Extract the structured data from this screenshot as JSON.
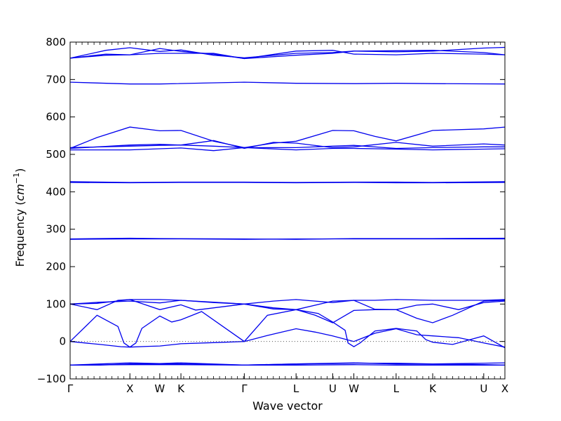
{
  "chart_data": {
    "type": "line",
    "title": "",
    "xlabel": "Wave vector",
    "ylabel": "Frequency (cm⁻¹)",
    "ylabel_parts": {
      "main": "Frequency (",
      "unit": "cm",
      "exp": "−1",
      "close": ")"
    },
    "ylim": [
      -100,
      800
    ],
    "y_ticks": [
      -100,
      0,
      100,
      200,
      300,
      400,
      500,
      600,
      700,
      800
    ],
    "y_tick_labels": [
      "−100",
      "0",
      "100",
      "200",
      "300",
      "400",
      "500",
      "600",
      "700",
      "800"
    ],
    "grid": false,
    "legend": "none",
    "color": "#0000ee",
    "x_path_points": [
      {
        "label": "Γ",
        "x": 0
      },
      {
        "label": "X",
        "x": 1.0
      },
      {
        "label": "W",
        "x": 1.5
      },
      {
        "label": "K",
        "x": 1.854
      },
      {
        "label": "Γ",
        "x": 2.914
      },
      {
        "label": "L",
        "x": 3.78
      },
      {
        "label": "U",
        "x": 4.393
      },
      {
        "label": "W",
        "x": 4.747
      },
      {
        "label": "L",
        "x": 5.454
      },
      {
        "label": "K",
        "x": 6.066
      },
      {
        "label": "U",
        "x": 6.92
      },
      {
        "label": "X",
        "x": 7.274
      }
    ],
    "zero_line": {
      "y": 0,
      "style": "dotted"
    },
    "series": [
      {
        "values": [
          [
            0,
            -63
          ],
          [
            0.5,
            -63
          ],
          [
            1.0,
            -60
          ],
          [
            1.5,
            -60
          ],
          [
            1.854,
            -60
          ],
          [
            2.914,
            -63
          ],
          [
            3.78,
            -60
          ],
          [
            4.393,
            -58
          ],
          [
            4.747,
            -57
          ],
          [
            5.454,
            -60
          ],
          [
            6.066,
            -60
          ],
          [
            6.92,
            -58
          ],
          [
            7.274,
            -57
          ]
        ]
      },
      {
        "values": [
          [
            0,
            -63
          ],
          [
            0.5,
            -60
          ],
          [
            1.0,
            -57
          ],
          [
            1.5,
            -59
          ],
          [
            1.854,
            -57
          ],
          [
            2.914,
            -63
          ],
          [
            3.78,
            -60
          ],
          [
            4.393,
            -59
          ],
          [
            4.747,
            -58
          ],
          [
            5.454,
            -58
          ],
          [
            6.066,
            -60
          ],
          [
            6.92,
            -62
          ],
          [
            7.274,
            -63
          ]
        ]
      },
      {
        "values": [
          [
            0,
            -63
          ],
          [
            1.0,
            -62
          ],
          [
            1.854,
            -62
          ],
          [
            2.914,
            -63
          ],
          [
            3.78,
            -63
          ],
          [
            4.747,
            -62
          ],
          [
            5.454,
            -63
          ],
          [
            6.066,
            -63
          ],
          [
            7.274,
            -63
          ]
        ]
      },
      {
        "values": [
          [
            0,
            0
          ],
          [
            0.5,
            -8
          ],
          [
            0.85,
            -14
          ],
          [
            1.0,
            -15
          ],
          [
            1.3,
            -13
          ],
          [
            1.5,
            -12
          ],
          [
            1.854,
            -6
          ],
          [
            2.4,
            -3
          ],
          [
            2.914,
            0
          ],
          [
            3.3,
            16
          ],
          [
            3.78,
            34
          ],
          [
            4.1,
            25
          ],
          [
            4.393,
            15
          ],
          [
            4.747,
            0
          ],
          [
            5.1,
            22
          ],
          [
            5.454,
            34
          ],
          [
            5.8,
            18
          ],
          [
            6.066,
            15
          ],
          [
            6.5,
            10
          ],
          [
            6.92,
            -4
          ],
          [
            7.274,
            -15
          ]
        ]
      },
      {
        "values": [
          [
            0,
            0
          ],
          [
            0.45,
            70
          ],
          [
            0.8,
            40
          ],
          [
            0.9,
            -4
          ],
          [
            1.0,
            -15
          ],
          [
            1.1,
            -4
          ],
          [
            1.2,
            35
          ],
          [
            1.5,
            68
          ],
          [
            1.7,
            52
          ],
          [
            1.854,
            58
          ],
          [
            2.2,
            80
          ],
          [
            2.914,
            0
          ],
          [
            3.3,
            70
          ],
          [
            3.78,
            85
          ],
          [
            4.15,
            75
          ],
          [
            4.393,
            52
          ],
          [
            4.6,
            30
          ],
          [
            4.65,
            -4
          ],
          [
            4.747,
            -14
          ],
          [
            4.85,
            -4
          ],
          [
            5.1,
            28
          ],
          [
            5.454,
            35
          ],
          [
            5.8,
            28
          ],
          [
            5.95,
            5
          ],
          [
            6.066,
            -2
          ],
          [
            6.4,
            -8
          ],
          [
            6.92,
            15
          ],
          [
            7.2,
            -10
          ],
          [
            7.274,
            -17
          ]
        ]
      },
      {
        "values": [
          [
            0,
            100
          ],
          [
            0.45,
            85
          ],
          [
            0.8,
            110
          ],
          [
            1.0,
            112
          ],
          [
            1.5,
            85
          ],
          [
            1.854,
            98
          ],
          [
            2.1,
            84
          ],
          [
            2.914,
            100
          ],
          [
            3.4,
            87
          ],
          [
            3.78,
            85
          ],
          [
            4.393,
            108
          ],
          [
            4.747,
            110
          ],
          [
            5.1,
            86
          ],
          [
            5.454,
            85
          ],
          [
            5.8,
            97
          ],
          [
            6.066,
            100
          ],
          [
            6.5,
            85
          ],
          [
            6.92,
            104
          ],
          [
            7.274,
            108
          ]
        ]
      },
      {
        "values": [
          [
            0,
            100
          ],
          [
            0.5,
            105
          ],
          [
            1.0,
            108
          ],
          [
            1.5,
            103
          ],
          [
            1.854,
            110
          ],
          [
            2.4,
            104
          ],
          [
            2.914,
            100
          ],
          [
            3.4,
            108
          ],
          [
            3.78,
            112
          ],
          [
            4.393,
            104
          ],
          [
            4.747,
            110
          ],
          [
            5.1,
            110
          ],
          [
            5.454,
            112
          ],
          [
            6.066,
            110
          ],
          [
            6.92,
            110
          ],
          [
            7.274,
            112
          ]
        ]
      },
      {
        "values": [
          [
            0,
            100
          ],
          [
            0.45,
            102
          ],
          [
            1.0,
            112
          ],
          [
            1.5,
            112
          ],
          [
            1.854,
            110
          ],
          [
            2.4,
            105
          ],
          [
            2.914,
            100
          ],
          [
            3.4,
            90
          ],
          [
            3.78,
            85
          ],
          [
            4.1,
            70
          ],
          [
            4.393,
            50
          ],
          [
            4.747,
            83
          ],
          [
            5.1,
            85
          ],
          [
            5.454,
            85
          ],
          [
            5.8,
            62
          ],
          [
            6.066,
            50
          ],
          [
            6.4,
            70
          ],
          [
            6.92,
            108
          ],
          [
            7.274,
            110
          ]
        ]
      },
      {
        "values": [
          [
            0,
            273
          ],
          [
            1.0,
            274
          ],
          [
            1.854,
            274
          ],
          [
            2.914,
            273
          ],
          [
            3.78,
            274
          ],
          [
            4.747,
            274
          ],
          [
            5.454,
            274
          ],
          [
            6.066,
            274
          ],
          [
            7.274,
            274
          ]
        ]
      },
      {
        "values": [
          [
            0,
            274
          ],
          [
            1.0,
            276
          ],
          [
            1.5,
            275
          ],
          [
            2.914,
            274
          ],
          [
            3.78,
            273
          ],
          [
            4.747,
            275
          ],
          [
            6.066,
            275
          ],
          [
            7.274,
            276
          ]
        ]
      },
      {
        "values": [
          [
            0,
            427
          ],
          [
            1.0,
            425
          ],
          [
            1.854,
            426
          ],
          [
            2.914,
            426
          ],
          [
            3.78,
            425
          ],
          [
            4.747,
            426
          ],
          [
            5.454,
            426
          ],
          [
            6.066,
            425
          ],
          [
            7.274,
            427
          ]
        ]
      },
      {
        "values": [
          [
            0,
            425
          ],
          [
            1.0,
            424
          ],
          [
            1.854,
            425
          ],
          [
            2.914,
            425
          ],
          [
            3.78,
            424
          ],
          [
            4.747,
            425
          ],
          [
            5.454,
            424
          ],
          [
            6.066,
            424
          ],
          [
            7.274,
            425
          ]
        ]
      },
      {
        "values": [
          [
            0,
            516
          ],
          [
            0.45,
            545
          ],
          [
            1.0,
            573
          ],
          [
            1.5,
            563
          ],
          [
            1.854,
            564
          ],
          [
            2.4,
            535
          ],
          [
            2.914,
            518
          ],
          [
            3.4,
            530
          ],
          [
            3.78,
            535
          ],
          [
            4.393,
            564
          ],
          [
            4.747,
            563
          ],
          [
            5.1,
            548
          ],
          [
            5.454,
            536
          ],
          [
            6.066,
            564
          ],
          [
            6.92,
            568
          ],
          [
            7.274,
            573
          ]
        ]
      },
      {
        "values": [
          [
            0,
            516
          ],
          [
            1.0,
            525
          ],
          [
            1.5,
            527
          ],
          [
            1.854,
            525
          ],
          [
            2.4,
            537
          ],
          [
            2.914,
            516
          ],
          [
            3.4,
            532
          ],
          [
            3.78,
            530
          ],
          [
            4.393,
            518
          ],
          [
            4.747,
            520
          ],
          [
            5.454,
            532
          ],
          [
            6.066,
            522
          ],
          [
            6.92,
            528
          ],
          [
            7.274,
            525
          ]
        ]
      },
      {
        "values": [
          [
            0,
            518
          ],
          [
            1.0,
            522
          ],
          [
            1.5,
            524
          ],
          [
            1.854,
            525
          ],
          [
            2.4,
            522
          ],
          [
            2.914,
            518
          ],
          [
            3.78,
            518
          ],
          [
            4.393,
            522
          ],
          [
            4.747,
            524
          ],
          [
            5.454,
            516
          ],
          [
            6.066,
            518
          ],
          [
            6.92,
            520
          ],
          [
            7.274,
            520
          ]
        ]
      },
      {
        "values": [
          [
            0,
            512
          ],
          [
            1.0,
            512
          ],
          [
            1.5,
            515
          ],
          [
            1.854,
            517
          ],
          [
            2.4,
            510
          ],
          [
            2.914,
            518
          ],
          [
            3.78,
            512
          ],
          [
            4.393,
            516
          ],
          [
            4.747,
            516
          ],
          [
            5.454,
            514
          ],
          [
            6.066,
            512
          ],
          [
            6.92,
            514
          ],
          [
            7.274,
            515
          ]
        ]
      },
      {
        "values": [
          [
            0,
            693
          ],
          [
            1.0,
            688
          ],
          [
            1.5,
            688
          ],
          [
            2.914,
            693
          ],
          [
            3.78,
            690
          ],
          [
            4.747,
            689
          ],
          [
            5.454,
            690
          ],
          [
            6.066,
            689
          ],
          [
            7.274,
            688
          ]
        ]
      },
      {
        "values": [
          [
            0,
            757
          ],
          [
            0.6,
            778
          ],
          [
            1.0,
            785
          ],
          [
            1.5,
            775
          ],
          [
            1.854,
            779
          ],
          [
            2.4,
            765
          ],
          [
            2.914,
            758
          ],
          [
            3.78,
            770
          ],
          [
            4.393,
            772
          ],
          [
            4.747,
            776
          ],
          [
            5.454,
            774
          ],
          [
            6.066,
            776
          ],
          [
            6.92,
            784
          ],
          [
            7.274,
            786
          ]
        ]
      },
      {
        "values": [
          [
            0,
            757
          ],
          [
            0.6,
            765
          ],
          [
            1.0,
            766
          ],
          [
            1.5,
            783
          ],
          [
            1.854,
            775
          ],
          [
            2.4,
            768
          ],
          [
            2.914,
            756
          ],
          [
            3.78,
            776
          ],
          [
            4.393,
            778
          ],
          [
            4.747,
            768
          ],
          [
            5.454,
            766
          ],
          [
            6.066,
            770
          ],
          [
            6.92,
            768
          ],
          [
            7.274,
            766
          ]
        ]
      },
      {
        "values": [
          [
            0,
            757
          ],
          [
            0.6,
            768
          ],
          [
            1.0,
            766
          ],
          [
            1.5,
            770
          ],
          [
            1.854,
            770
          ],
          [
            2.4,
            770
          ],
          [
            2.914,
            756
          ],
          [
            3.78,
            765
          ],
          [
            4.393,
            770
          ],
          [
            4.747,
            776
          ],
          [
            5.454,
            777
          ],
          [
            6.066,
            778
          ],
          [
            6.92,
            772
          ],
          [
            7.274,
            766
          ]
        ]
      }
    ]
  }
}
